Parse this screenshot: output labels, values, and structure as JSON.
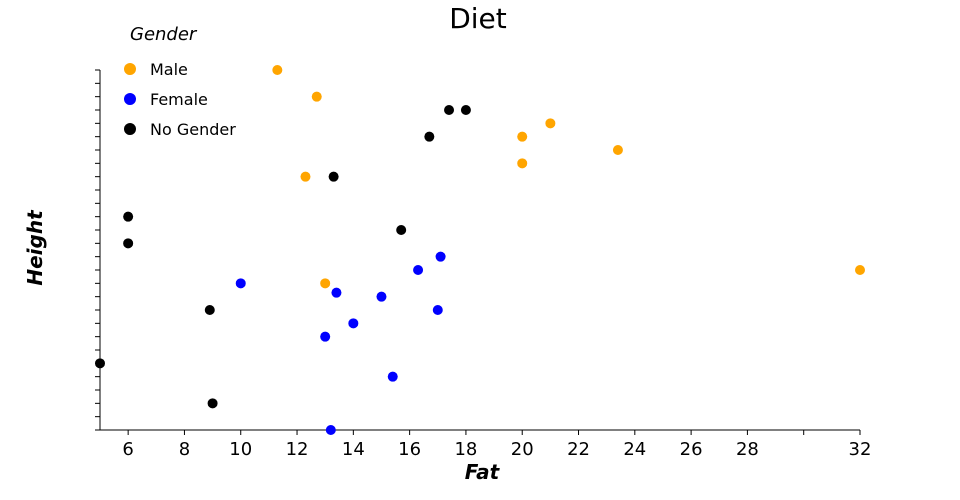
{
  "chart_data": {
    "type": "scatter",
    "title": "Diet",
    "xlabel": "Fat",
    "ylabel": "Height",
    "xlim": [
      5,
      32
    ],
    "ylim": [
      0,
      27
    ],
    "x_ticks": [
      6,
      8,
      10,
      12,
      14,
      16,
      18,
      20,
      22,
      24,
      26,
      28,
      30,
      32
    ],
    "x_tick_labels": [
      "6",
      "8",
      "10",
      "12",
      "14",
      "16",
      "18",
      "20",
      "22",
      "24",
      "26",
      "28",
      "",
      "32"
    ],
    "y_ticks": [
      0,
      1,
      2,
      3,
      4,
      5,
      6,
      7,
      8,
      9,
      10,
      11,
      12,
      13,
      14,
      15,
      16,
      17,
      18,
      19,
      20,
      21,
      22,
      23,
      24,
      25,
      26,
      27
    ],
    "grid": false,
    "legend": {
      "title": "Gender",
      "position": "top-left"
    },
    "series": [
      {
        "name": "Male",
        "color": "#FFA500",
        "points": [
          {
            "x": 11.3,
            "y": 27
          },
          {
            "x": 12.7,
            "y": 25
          },
          {
            "x": 12.3,
            "y": 19
          },
          {
            "x": 13.0,
            "y": 11
          },
          {
            "x": 20.0,
            "y": 22
          },
          {
            "x": 20.0,
            "y": 20
          },
          {
            "x": 21.0,
            "y": 23
          },
          {
            "x": 23.4,
            "y": 21
          },
          {
            "x": 32.0,
            "y": 12
          }
        ]
      },
      {
        "name": "Female",
        "color": "#0000FF",
        "points": [
          {
            "x": 10.0,
            "y": 11
          },
          {
            "x": 13.0,
            "y": 7
          },
          {
            "x": 13.2,
            "y": 0
          },
          {
            "x": 13.4,
            "y": 10.3
          },
          {
            "x": 14.0,
            "y": 8
          },
          {
            "x": 15.0,
            "y": 10
          },
          {
            "x": 15.4,
            "y": 4
          },
          {
            "x": 16.3,
            "y": 12
          },
          {
            "x": 17.0,
            "y": 9
          },
          {
            "x": 17.1,
            "y": 13
          }
        ]
      },
      {
        "name": "No Gender",
        "color": "#000000",
        "points": [
          {
            "x": 5.0,
            "y": 5
          },
          {
            "x": 6.0,
            "y": 16
          },
          {
            "x": 6.0,
            "y": 14
          },
          {
            "x": 8.9,
            "y": 9
          },
          {
            "x": 9.0,
            "y": 2
          },
          {
            "x": 13.3,
            "y": 19
          },
          {
            "x": 15.7,
            "y": 15
          },
          {
            "x": 16.7,
            "y": 22
          },
          {
            "x": 17.4,
            "y": 24
          },
          {
            "x": 18.0,
            "y": 24
          }
        ]
      }
    ]
  }
}
